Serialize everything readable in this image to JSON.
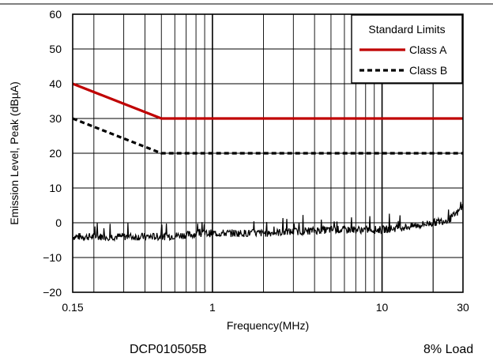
{
  "chart_data": {
    "type": "line",
    "xlabel": "Frequency(MHz)",
    "ylabel": "Emission Level, Peak (dBµA)",
    "xscale": "log",
    "xlim": [
      0.15,
      30
    ],
    "ylim": [
      -20,
      60
    ],
    "x_tick_labels": [
      "0.15",
      "1",
      "10",
      "30"
    ],
    "x_tick_values": [
      0.15,
      1,
      10,
      30
    ],
    "y_ticks": [
      -20,
      -10,
      0,
      10,
      20,
      30,
      40,
      50,
      60
    ],
    "y_tick_labels": [
      "−20",
      "−10",
      "0",
      "10",
      "20",
      "30",
      "40",
      "50",
      "60"
    ],
    "grid": true,
    "legend": {
      "title": "Standard Limits",
      "placement": "top-right",
      "entries": [
        {
          "name": "Class A",
          "color": "#c00000",
          "style": "solid"
        },
        {
          "name": "Class B",
          "color": "#000000",
          "style": "dashed"
        }
      ]
    },
    "series": [
      {
        "name": "Class A",
        "color": "#c00000",
        "style": "solid",
        "x": [
          0.15,
          0.5,
          30
        ],
        "y": [
          40,
          30,
          30
        ]
      },
      {
        "name": "Class B",
        "color": "#000000",
        "style": "dashed",
        "x": [
          0.15,
          0.5,
          30
        ],
        "y": [
          30,
          20,
          20
        ]
      },
      {
        "name": "",
        "color": "#000000",
        "style": "solid",
        "x": [
          0.15,
          0.2,
          0.3,
          0.4,
          0.5,
          1,
          2,
          5,
          10,
          15,
          20,
          25,
          28,
          30
        ],
        "y": [
          -4,
          -4,
          -4,
          -4,
          -4,
          -3,
          -3,
          -2,
          -2,
          -1,
          0,
          1,
          3,
          5
        ]
      }
    ]
  },
  "footer": {
    "left": "DCP010505B",
    "right": "8% Load"
  },
  "colors": {
    "class_a": "#c00000",
    "class_b": "#000000",
    "grid": "#000000"
  }
}
